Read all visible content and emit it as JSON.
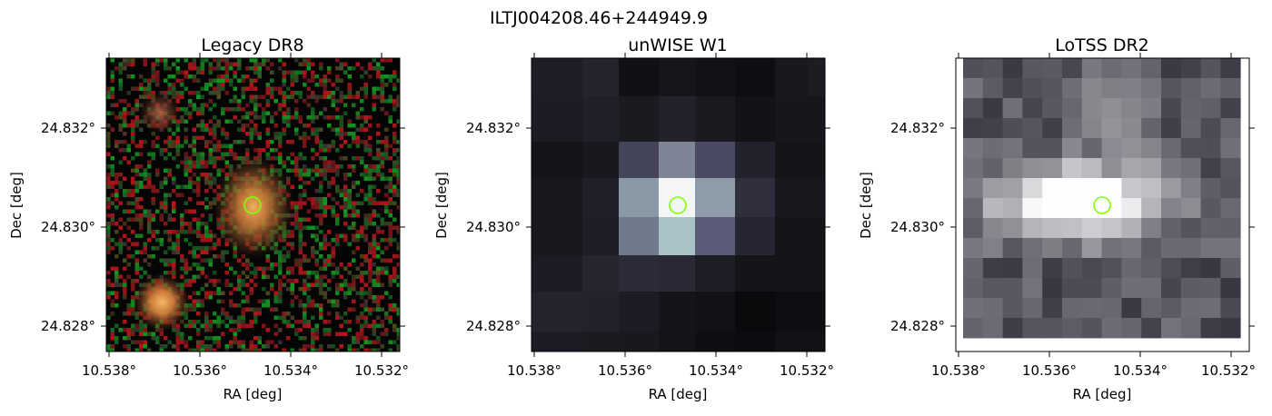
{
  "figure": {
    "title": "ILTJ004208.46+244949.9",
    "panels": [
      {
        "id": "legacy",
        "title": "Legacy DR8",
        "xlabel": "RA [deg]",
        "ylabel": "Dec [deg]",
        "xticks": [
          "10.538°",
          "10.536°",
          "10.534°",
          "10.532°"
        ],
        "yticks": [
          "24.832°",
          "24.830°",
          "24.828°"
        ],
        "marker_color": "#7fff00"
      },
      {
        "id": "unwise",
        "title": "unWISE W1",
        "xlabel": "RA [deg]",
        "ylabel": "Dec [deg]",
        "xticks": [
          "10.538°",
          "10.536°",
          "10.534°",
          "10.532°"
        ],
        "yticks": [
          "24.832°",
          "24.830°",
          "24.828°"
        ],
        "marker_color": "#7fff00"
      },
      {
        "id": "lotss",
        "title": "LoTSS DR2",
        "xlabel": "RA [deg]",
        "ylabel": "Dec [deg]",
        "xticks": [
          "10.538°",
          "10.536°",
          "10.534°",
          "10.532°"
        ],
        "yticks": [
          "24.832°",
          "24.830°",
          "24.828°"
        ],
        "marker_color": "#7fff00"
      }
    ]
  }
}
